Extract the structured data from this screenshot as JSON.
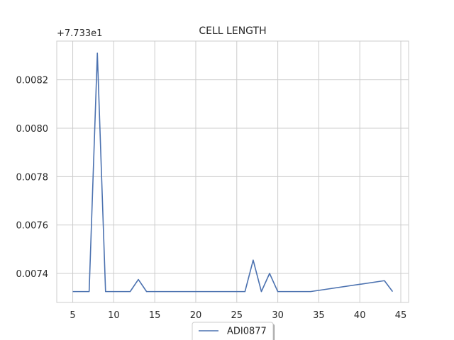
{
  "chart_data": {
    "type": "line",
    "title": "CELL LENGTH",
    "xlabel": "",
    "ylabel": "",
    "y_offset_label": "+7.733e1",
    "xlim": [
      3.05,
      45.95
    ],
    "ylim": [
      0.00728,
      0.00836
    ],
    "x_ticks": [
      5,
      10,
      15,
      20,
      25,
      30,
      35,
      40,
      45
    ],
    "x_tick_labels": [
      "5",
      "10",
      "15",
      "20",
      "25",
      "30",
      "35",
      "40",
      "45"
    ],
    "y_ticks": [
      0.0074,
      0.0076,
      0.0078,
      0.008,
      0.0082
    ],
    "y_tick_labels": [
      "0.0074",
      "0.0076",
      "0.0078",
      "0.0080",
      "0.0082"
    ],
    "grid": true,
    "legend_position": "lower-center",
    "series": [
      {
        "name": "ADI0877",
        "color": "#4c72b0",
        "x": [
          5,
          6,
          7,
          8,
          9,
          10,
          11,
          12,
          13,
          14,
          15,
          16,
          17,
          18,
          19,
          20,
          21,
          22,
          23,
          24,
          25,
          26,
          27,
          28,
          29,
          30,
          31,
          32,
          33,
          34,
          43,
          44
        ],
        "y": [
          0.007325,
          0.007325,
          0.007325,
          0.00831,
          0.007325,
          0.007325,
          0.007325,
          0.007325,
          0.007375,
          0.007325,
          0.007325,
          0.007325,
          0.007325,
          0.007325,
          0.007325,
          0.007325,
          0.007325,
          0.007325,
          0.007325,
          0.007325,
          0.007325,
          0.007325,
          0.007455,
          0.007325,
          0.0074,
          0.007325,
          0.007325,
          0.007325,
          0.007325,
          0.007325,
          0.00737,
          0.007325
        ]
      }
    ]
  }
}
